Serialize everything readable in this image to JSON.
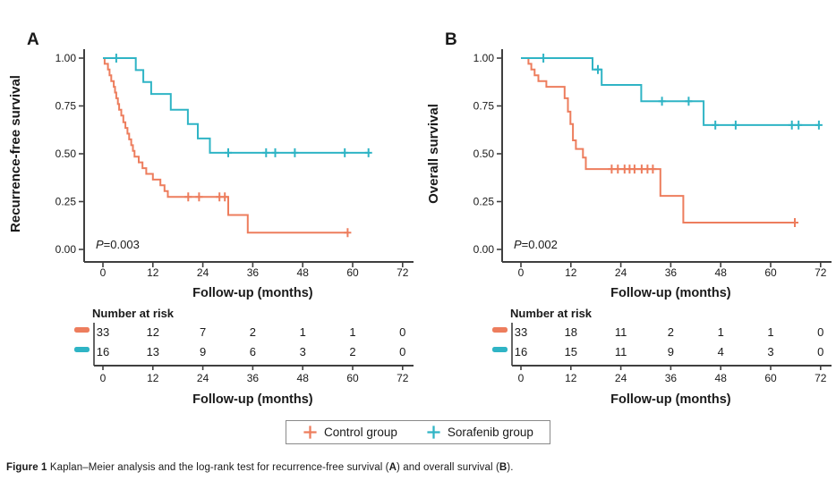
{
  "style": {
    "axis_color": "#3f3f3f",
    "text_color": "#1a1a1a",
    "control_color": "#ED7D5D",
    "sorafenib_color": "#2FB4C5"
  },
  "legend": {
    "items": [
      {
        "label": "Control group",
        "color": "#ED7D5D"
      },
      {
        "label": "Sorafenib group",
        "color": "#2FB4C5"
      }
    ]
  },
  "caption": {
    "segments": [
      "Figure 1",
      " Kaplan–Meier analysis and the log-rank test for recurrence-free survival (",
      "A",
      ") and overall survival (",
      "B",
      ")."
    ]
  },
  "chart_data": [
    {
      "type": "line",
      "panel_label": "A",
      "ylabel": "Recurrence-free survival",
      "xlabel": "Follow-up (months)",
      "p_value": {
        "italic": "P",
        "rest": "=0.003"
      },
      "xticks": [
        0,
        12,
        24,
        36,
        48,
        60,
        72
      ],
      "yticks": [
        "0.00",
        "0.25",
        "0.50",
        "0.75",
        "1.00"
      ],
      "xlim": [
        0,
        74
      ],
      "ylim": [
        0,
        1
      ],
      "series": [
        {
          "name": "Control group",
          "color": "#ED7D5D",
          "steps": [
            [
              0,
              1.0
            ],
            [
              0.4,
              0.97
            ],
            [
              1.2,
              0.94
            ],
            [
              1.6,
              0.91
            ],
            [
              2.0,
              0.88
            ],
            [
              2.6,
              0.85
            ],
            [
              2.9,
              0.82
            ],
            [
              3.2,
              0.79
            ],
            [
              3.6,
              0.76
            ],
            [
              3.9,
              0.73
            ],
            [
              4.4,
              0.7
            ],
            [
              4.9,
              0.665
            ],
            [
              5.4,
              0.635
            ],
            [
              5.9,
              0.605
            ],
            [
              6.3,
              0.575
            ],
            [
              6.8,
              0.545
            ],
            [
              7.2,
              0.515
            ],
            [
              7.6,
              0.485
            ],
            [
              8.6,
              0.455
            ],
            [
              9.5,
              0.425
            ],
            [
              10.4,
              0.395
            ],
            [
              12.0,
              0.365
            ],
            [
              13.8,
              0.335
            ],
            [
              14.8,
              0.305
            ],
            [
              15.6,
              0.275
            ],
            [
              30.1,
              0.18
            ],
            [
              34.8,
              0.088
            ]
          ],
          "end_time": 58.8,
          "censor_marks": [
            [
              20.5,
              0.275
            ],
            [
              23.1,
              0.275
            ],
            [
              28.0,
              0.275
            ],
            [
              29.3,
              0.275
            ],
            [
              58.8,
              0.088
            ]
          ]
        },
        {
          "name": "Sorafenib group",
          "color": "#2FB4C5",
          "steps": [
            [
              0,
              1.0
            ],
            [
              7.9,
              0.9375
            ],
            [
              9.7,
              0.875
            ],
            [
              11.6,
              0.8125
            ],
            [
              16.3,
              0.73
            ],
            [
              20.4,
              0.655
            ],
            [
              22.8,
              0.58
            ],
            [
              25.7,
              0.505
            ]
          ],
          "end_time": 64.0,
          "censor_marks": [
            [
              3.2,
              1.0
            ],
            [
              30.1,
              0.505
            ],
            [
              39.2,
              0.505
            ],
            [
              41.4,
              0.505
            ],
            [
              46.1,
              0.505
            ],
            [
              58.1,
              0.505
            ],
            [
              63.8,
              0.505
            ]
          ]
        }
      ],
      "risk_table": {
        "title": "Number at risk",
        "axis_label": "Follow-up (months)",
        "times": [
          0,
          12,
          24,
          36,
          48,
          60,
          72
        ],
        "rows": [
          {
            "group": "Control group",
            "color": "#ED7D5D",
            "counts": [
              33,
              12,
              7,
              2,
              1,
              1,
              0
            ]
          },
          {
            "group": "Sorafenib group",
            "color": "#2FB4C5",
            "counts": [
              16,
              13,
              9,
              6,
              3,
              2,
              0
            ]
          }
        ]
      }
    },
    {
      "type": "line",
      "panel_label": "B",
      "ylabel": "Overall survival",
      "xlabel": "Follow-up (months)",
      "p_value": {
        "italic": "P",
        "rest": "=0.002"
      },
      "xticks": [
        0,
        12,
        24,
        36,
        48,
        60,
        72
      ],
      "yticks": [
        "0.00",
        "0.25",
        "0.50",
        "0.75",
        "1.00"
      ],
      "xlim": [
        0,
        74
      ],
      "ylim": [
        0,
        1
      ],
      "series": [
        {
          "name": "Control group",
          "color": "#ED7D5D",
          "steps": [
            [
              0.5,
              1.0
            ],
            [
              1.8,
              0.97
            ],
            [
              2.5,
              0.94
            ],
            [
              3.3,
              0.91
            ],
            [
              4.2,
              0.88
            ],
            [
              6.1,
              0.85
            ],
            [
              10.5,
              0.79
            ],
            [
              11.3,
              0.72
            ],
            [
              11.9,
              0.655
            ],
            [
              12.5,
              0.57
            ],
            [
              13.2,
              0.525
            ],
            [
              14.9,
              0.48
            ],
            [
              15.6,
              0.42
            ],
            [
              33.5,
              0.28
            ],
            [
              39.0,
              0.14
            ]
          ],
          "end_time": 65.8,
          "censor_marks": [
            [
              21.8,
              0.42
            ],
            [
              23.3,
              0.42
            ],
            [
              24.9,
              0.42
            ],
            [
              26.1,
              0.42
            ],
            [
              27.3,
              0.42
            ],
            [
              29.0,
              0.42
            ],
            [
              30.4,
              0.42
            ],
            [
              31.7,
              0.42
            ],
            [
              65.8,
              0.14
            ]
          ]
        },
        {
          "name": "Sorafenib group",
          "color": "#2FB4C5",
          "steps": [
            [
              0,
              1.0
            ],
            [
              17.2,
              0.94
            ],
            [
              19.4,
              0.86
            ],
            [
              28.9,
              0.775
            ],
            [
              43.9,
              0.65
            ]
          ],
          "end_time": 71.8,
          "censor_marks": [
            [
              5.4,
              1.0
            ],
            [
              18.5,
              0.94
            ],
            [
              33.9,
              0.775
            ],
            [
              40.3,
              0.775
            ],
            [
              46.7,
              0.65
            ],
            [
              51.6,
              0.65
            ],
            [
              65.1,
              0.65
            ],
            [
              66.7,
              0.65
            ],
            [
              71.6,
              0.65
            ]
          ]
        }
      ],
      "risk_table": {
        "title": "Number at risk",
        "axis_label": "Follow-up (months)",
        "times": [
          0,
          12,
          24,
          36,
          48,
          60,
          72
        ],
        "rows": [
          {
            "group": "Control group",
            "color": "#ED7D5D",
            "counts": [
              33,
              18,
              11,
              2,
              1,
              1,
              0
            ]
          },
          {
            "group": "Sorafenib group",
            "color": "#2FB4C5",
            "counts": [
              16,
              15,
              11,
              9,
              4,
              3,
              0
            ]
          }
        ]
      }
    }
  ]
}
